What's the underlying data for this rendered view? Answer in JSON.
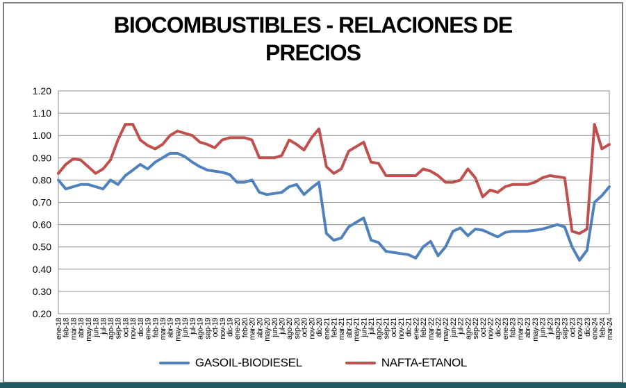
{
  "title_line1": "BIOCOMBUSTIBLES - RELACIONES DE",
  "title_line2": "PRECIOS",
  "colors": {
    "gasoil_biodiesel": "#4F81BD",
    "nafta_etanol": "#C0504D",
    "gridline": "#8C8C8C",
    "plot_border": "#8C8C8C",
    "axis_text": "#000000",
    "frame_border": "#7F7F7F",
    "bottom_bar": "#1D5B60"
  },
  "chart_data": {
    "type": "line",
    "title": "BIOCOMBUSTIBLES - RELACIONES DE PRECIOS",
    "xlabel": "",
    "ylabel": "",
    "ylim": [
      0.2,
      1.2
    ],
    "yticks": [
      "1.20",
      "1.10",
      "1.00",
      "0.90",
      "0.80",
      "0.70",
      "0.60",
      "0.50",
      "0.40",
      "0.30",
      "0.20"
    ],
    "grid": true,
    "legend_position": "bottom",
    "categories": [
      "ene-18",
      "feb-18",
      "mar-18",
      "abr-18",
      "may-18",
      "jun-18",
      "jul-18",
      "ago-18",
      "sep-18",
      "oct-18",
      "nov-18",
      "dic-18",
      "ene-19",
      "feb-19",
      "mar-19",
      "abr-19",
      "may-19",
      "jun-19",
      "jul-19",
      "ago-19",
      "sep-19",
      "oct-19",
      "nov-19",
      "dic-19",
      "ene-20",
      "feb-20",
      "mar-20",
      "abr-20",
      "may-20",
      "jun-20",
      "jul-20",
      "ago-20",
      "sep-20",
      "oct-20",
      "nov-20",
      "dic-20",
      "ene-21",
      "feb-21",
      "mar-21",
      "abr-21",
      "may-21",
      "jun-21",
      "jul-21",
      "ago-21",
      "sep-21",
      "oct-21",
      "nov-21",
      "dic-21",
      "ene-22",
      "feb-22",
      "mar-22",
      "abr-22",
      "may-22",
      "jun-22",
      "jul-22",
      "ago-22",
      "sep-22",
      "oct-22",
      "nov-22",
      "dic-22",
      "ene-23",
      "feb-23",
      "mar-23",
      "abr-23",
      "may-23",
      "jun-23",
      "jul-23",
      "ago-23",
      "sep-23",
      "oct-23",
      "nov-23",
      "dic-23",
      "ene-24",
      "feb-24",
      "mar-24"
    ],
    "series": [
      {
        "name": "GASOIL-BIODIESEL",
        "color": "#4F81BD",
        "values": [
          0.8,
          0.76,
          0.77,
          0.78,
          0.78,
          0.77,
          0.76,
          0.8,
          0.78,
          0.82,
          0.845,
          0.87,
          0.85,
          0.88,
          0.9,
          0.92,
          0.92,
          0.905,
          0.88,
          0.86,
          0.845,
          0.84,
          0.835,
          0.825,
          0.79,
          0.79,
          0.8,
          0.745,
          0.735,
          0.74,
          0.745,
          0.77,
          0.78,
          0.735,
          0.765,
          0.79,
          0.56,
          0.53,
          0.54,
          0.59,
          0.61,
          0.63,
          0.53,
          0.52,
          0.48,
          0.475,
          0.47,
          0.465,
          0.45,
          0.5,
          0.525,
          0.46,
          0.5,
          0.57,
          0.585,
          0.55,
          0.58,
          0.575,
          0.56,
          0.545,
          0.565,
          0.57,
          0.57,
          0.57,
          0.575,
          0.58,
          0.59,
          0.6,
          0.59,
          0.5,
          0.44,
          0.485,
          0.7,
          0.73,
          0.77
        ]
      },
      {
        "name": "NAFTA-ETANOL",
        "color": "#C0504D",
        "values": [
          0.83,
          0.87,
          0.895,
          0.89,
          0.86,
          0.83,
          0.85,
          0.89,
          0.98,
          1.05,
          1.05,
          0.98,
          0.955,
          0.94,
          0.96,
          1.0,
          1.02,
          1.01,
          1.0,
          0.97,
          0.96,
          0.945,
          0.98,
          0.99,
          0.99,
          0.99,
          0.98,
          0.9,
          0.9,
          0.9,
          0.91,
          0.98,
          0.96,
          0.935,
          0.99,
          1.03,
          0.86,
          0.83,
          0.85,
          0.93,
          0.95,
          0.97,
          0.88,
          0.875,
          0.82,
          0.82,
          0.82,
          0.82,
          0.82,
          0.85,
          0.84,
          0.82,
          0.79,
          0.79,
          0.8,
          0.85,
          0.81,
          0.725,
          0.755,
          0.745,
          0.77,
          0.78,
          0.78,
          0.78,
          0.79,
          0.81,
          0.82,
          0.815,
          0.81,
          0.57,
          0.56,
          0.58,
          1.05,
          0.94,
          0.96
        ]
      }
    ]
  }
}
